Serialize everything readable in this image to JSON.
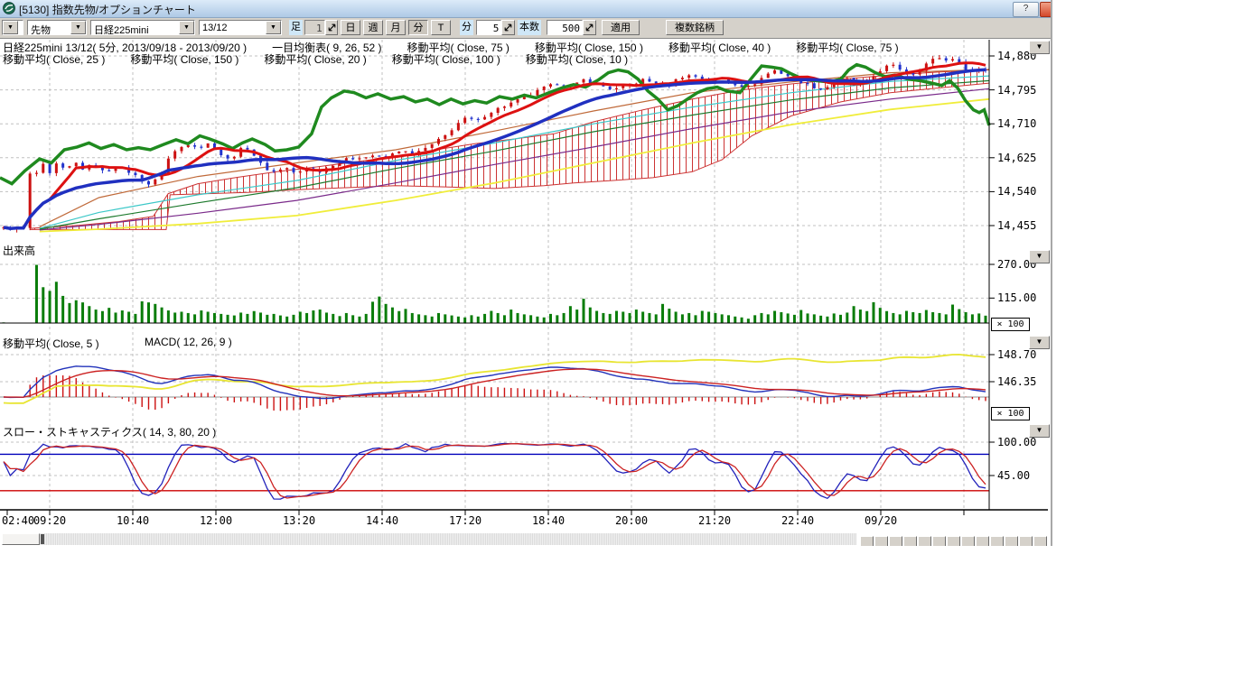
{
  "window": {
    "title": "[5130] 指数先物/オプションチャート",
    "help_label": "?"
  },
  "toolbar": {
    "category_value": "先物",
    "symbol_value": "日経225mini",
    "contract_value": "13/12",
    "bar_label": "足",
    "bar_interval_value": "1",
    "period_buttons": [
      "日",
      "週",
      "月",
      "分",
      "T"
    ],
    "pressed_period": "分",
    "minute_label": "分",
    "minute_value": "5",
    "bars_label": "本数",
    "bars_value": "500",
    "apply_label": "適用",
    "multi_symbol_label": "複数銘柄"
  },
  "legends": {
    "row1": [
      "日経225mini 13/12( 5分, 2013/09/18 - 2013/09/20 )",
      "一目均衡表( 9, 26, 52 )",
      "移動平均( Close, 75 )",
      "移動平均( Close, 150 )",
      "移動平均( Close, 40 )",
      "移動平均( Close, 75 )"
    ],
    "row2": [
      "移動平均( Close, 25 )",
      "移動平均( Close, 150 )",
      "移動平均( Close, 20 )",
      "移動平均( Close, 100 )",
      "移動平均( Close, 10 )"
    ]
  },
  "panes": {
    "volume_label": "出来高",
    "macd_ma_label": "移動平均( Close, 5 )",
    "macd_label": "MACD( 12, 26, 9 )",
    "stoch_label": "スロー・ストキャスティクス( 14, 3, 80, 20 )",
    "multiplier_badge": "× 100"
  },
  "axes": {
    "price_labels": [
      "14,880",
      "14,795",
      "14,710",
      "14,625",
      "14,540",
      "14,455"
    ],
    "price_values": [
      14880,
      14795,
      14710,
      14625,
      14540,
      14455
    ],
    "volume_labels": [
      "270.00",
      "115.00"
    ],
    "volume_values": [
      270,
      115
    ],
    "macd_axis_labels": [
      "148.70",
      "146.35"
    ],
    "macd_axis_values": [
      148.7,
      146.35
    ],
    "stoch_labels": [
      "100.00",
      "45.00"
    ],
    "stoch_values": [
      100,
      45
    ],
    "time_labels": [
      "02:40",
      "09:20",
      "10:40",
      "12:00",
      "13:20",
      "14:40",
      "17:20",
      "18:40",
      "20:00",
      "21:20",
      "22:40",
      "09/20"
    ]
  },
  "colors": {
    "grid": "#c0c0c0",
    "axis": "#000000",
    "candle_up": "#cc1111",
    "candle_down": "#2233cc",
    "ma_green_thick": "#1f8a1f",
    "ma_red_thick": "#dd1111",
    "ma_blue_thick": "#2030c0",
    "ma_yellow": "#f0ed3a",
    "ma_cyan": "#3cc8c8",
    "ma_purple": "#7a2a8a",
    "ma_darkgreen": "#1d7a2d",
    "ma_orange": "#c06a3a",
    "cloud": "#cc3333",
    "volume": "#0a7d0a",
    "macd_line": "#2233bb",
    "macd_signal": "#cc2222",
    "macd_hist": "#cc1111",
    "macd_ma5": "#e8e532",
    "stoch_k": "#2222bb",
    "stoch_d": "#cc2222",
    "stoch_upper_line": "#0000bb",
    "stoch_lower_line": "#cc0000",
    "titlebar_top": "#dcebf9",
    "titlebar_bottom": "#aec9e6",
    "toolbar_bg": "#d5d1ca"
  },
  "chart_data": {
    "type": "candlestick+indicators",
    "instrument": "日経225mini 13/12",
    "interval": "5分",
    "date_range": "2013/09/18 - 2013/09/20",
    "num_candles": 150,
    "price_axis": {
      "labels": [
        14880,
        14795,
        14710,
        14625,
        14540,
        14455
      ],
      "step": 85
    },
    "indicator_params": {
      "ichimoku": [
        9,
        26,
        52
      ],
      "ma_main_chart": [
        75,
        150,
        40,
        75,
        25,
        150,
        20,
        100,
        10
      ],
      "ma_macd_pane": 5,
      "macd": [
        12,
        26,
        9
      ],
      "slow_stochastics": [
        14,
        3,
        80,
        20
      ],
      "volume_multiplier": 100,
      "macd_pane_multiplier": 100
    },
    "stoch_levels": {
      "upper": 80,
      "lower": 20
    },
    "close_path": [
      [
        0.0,
        14448
      ],
      [
        0.026,
        14448
      ],
      [
        0.03,
        14580
      ],
      [
        0.034,
        14620
      ],
      [
        0.038,
        14575
      ],
      [
        0.044,
        14608
      ],
      [
        0.05,
        14582
      ],
      [
        0.058,
        14612
      ],
      [
        0.066,
        14590
      ],
      [
        0.075,
        14615
      ],
      [
        0.085,
        14595
      ],
      [
        0.095,
        14610
      ],
      [
        0.105,
        14588
      ],
      [
        0.118,
        14604
      ],
      [
        0.13,
        14590
      ],
      [
        0.142,
        14572
      ],
      [
        0.152,
        14556
      ],
      [
        0.162,
        14580
      ],
      [
        0.172,
        14632
      ],
      [
        0.182,
        14650
      ],
      [
        0.192,
        14662
      ],
      [
        0.202,
        14650
      ],
      [
        0.212,
        14662
      ],
      [
        0.222,
        14635
      ],
      [
        0.232,
        14618
      ],
      [
        0.242,
        14645
      ],
      [
        0.252,
        14650
      ],
      [
        0.262,
        14612
      ],
      [
        0.275,
        14588
      ],
      [
        0.288,
        14602
      ],
      [
        0.3,
        14584
      ],
      [
        0.312,
        14600
      ],
      [
        0.325,
        14590
      ],
      [
        0.338,
        14610
      ],
      [
        0.35,
        14628
      ],
      [
        0.362,
        14618
      ],
      [
        0.375,
        14635
      ],
      [
        0.39,
        14625
      ],
      [
        0.405,
        14642
      ],
      [
        0.42,
        14635
      ],
      [
        0.435,
        14655
      ],
      [
        0.45,
        14680
      ],
      [
        0.462,
        14710
      ],
      [
        0.472,
        14725
      ],
      [
        0.482,
        14715
      ],
      [
        0.492,
        14735
      ],
      [
        0.505,
        14750
      ],
      [
        0.52,
        14765
      ],
      [
        0.535,
        14780
      ],
      [
        0.55,
        14800
      ],
      [
        0.565,
        14812
      ],
      [
        0.578,
        14802
      ],
      [
        0.59,
        14820
      ],
      [
        0.605,
        14808
      ],
      [
        0.62,
        14795
      ],
      [
        0.635,
        14805
      ],
      [
        0.65,
        14820
      ],
      [
        0.662,
        14812
      ],
      [
        0.675,
        14805
      ],
      [
        0.688,
        14828
      ],
      [
        0.7,
        14832
      ],
      [
        0.715,
        14818
      ],
      [
        0.73,
        14825
      ],
      [
        0.745,
        14808
      ],
      [
        0.758,
        14802
      ],
      [
        0.77,
        14825
      ],
      [
        0.782,
        14845
      ],
      [
        0.795,
        14832
      ],
      [
        0.808,
        14818
      ],
      [
        0.82,
        14805
      ],
      [
        0.832,
        14795
      ],
      [
        0.845,
        14818
      ],
      [
        0.855,
        14825
      ],
      [
        0.865,
        14805
      ],
      [
        0.878,
        14818
      ],
      [
        0.89,
        14845
      ],
      [
        0.9,
        14858
      ],
      [
        0.912,
        14845
      ],
      [
        0.924,
        14835
      ],
      [
        0.936,
        14860
      ],
      [
        0.948,
        14878
      ],
      [
        0.956,
        14868
      ],
      [
        0.964,
        14876
      ],
      [
        0.972,
        14855
      ],
      [
        0.982,
        14840
      ],
      [
        0.992,
        14848
      ],
      [
        1.0,
        14842
      ]
    ],
    "green_ma_path": [
      [
        0.0,
        14575
      ],
      [
        0.012,
        14560
      ],
      [
        0.025,
        14592
      ],
      [
        0.04,
        14622
      ],
      [
        0.052,
        14612
      ],
      [
        0.065,
        14645
      ],
      [
        0.078,
        14652
      ],
      [
        0.09,
        14662
      ],
      [
        0.102,
        14648
      ],
      [
        0.115,
        14658
      ],
      [
        0.128,
        14645
      ],
      [
        0.14,
        14650
      ],
      [
        0.152,
        14645
      ],
      [
        0.165,
        14658
      ],
      [
        0.178,
        14670
      ],
      [
        0.19,
        14660
      ],
      [
        0.202,
        14680
      ],
      [
        0.212,
        14672
      ],
      [
        0.225,
        14660
      ],
      [
        0.235,
        14648
      ],
      [
        0.245,
        14662
      ],
      [
        0.255,
        14672
      ],
      [
        0.268,
        14658
      ],
      [
        0.278,
        14642
      ],
      [
        0.29,
        14645
      ],
      [
        0.302,
        14652
      ],
      [
        0.315,
        14685
      ],
      [
        0.325,
        14752
      ],
      [
        0.335,
        14775
      ],
      [
        0.348,
        14792
      ],
      [
        0.358,
        14788
      ],
      [
        0.37,
        14775
      ],
      [
        0.382,
        14785
      ],
      [
        0.395,
        14772
      ],
      [
        0.408,
        14778
      ],
      [
        0.42,
        14765
      ],
      [
        0.432,
        14772
      ],
      [
        0.444,
        14758
      ],
      [
        0.456,
        14772
      ],
      [
        0.468,
        14760
      ],
      [
        0.48,
        14768
      ],
      [
        0.492,
        14762
      ],
      [
        0.505,
        14778
      ],
      [
        0.518,
        14772
      ],
      [
        0.53,
        14782
      ],
      [
        0.542,
        14775
      ],
      [
        0.555,
        14788
      ],
      [
        0.568,
        14800
      ],
      [
        0.58,
        14808
      ],
      [
        0.592,
        14802
      ],
      [
        0.605,
        14820
      ],
      [
        0.615,
        14838
      ],
      [
        0.625,
        14845
      ],
      [
        0.635,
        14840
      ],
      [
        0.645,
        14822
      ],
      [
        0.655,
        14792
      ],
      [
        0.665,
        14772
      ],
      [
        0.675,
        14745
      ],
      [
        0.685,
        14755
      ],
      [
        0.695,
        14772
      ],
      [
        0.705,
        14788
      ],
      [
        0.715,
        14798
      ],
      [
        0.725,
        14802
      ],
      [
        0.735,
        14792
      ],
      [
        0.748,
        14788
      ],
      [
        0.76,
        14825
      ],
      [
        0.77,
        14855
      ],
      [
        0.78,
        14852
      ],
      [
        0.79,
        14848
      ],
      [
        0.8,
        14835
      ],
      [
        0.812,
        14822
      ],
      [
        0.825,
        14818
      ],
      [
        0.838,
        14815
      ],
      [
        0.85,
        14822
      ],
      [
        0.858,
        14845
      ],
      [
        0.866,
        14858
      ],
      [
        0.875,
        14852
      ],
      [
        0.885,
        14838
      ],
      [
        0.895,
        14828
      ],
      [
        0.905,
        14832
      ],
      [
        0.918,
        14822
      ],
      [
        0.93,
        14818
      ],
      [
        0.942,
        14812
      ],
      [
        0.952,
        14806
      ],
      [
        0.96,
        14818
      ],
      [
        0.968,
        14800
      ],
      [
        0.976,
        14768
      ],
      [
        0.984,
        14745
      ],
      [
        0.99,
        14738
      ],
      [
        0.995,
        14745
      ],
      [
        1.0,
        14706
      ]
    ],
    "cloud_top": [
      [
        0.03,
        14448
      ],
      [
        0.08,
        14456
      ],
      [
        0.12,
        14465
      ],
      [
        0.155,
        14478
      ],
      [
        0.17,
        14535
      ],
      [
        0.2,
        14560
      ],
      [
        0.24,
        14576
      ],
      [
        0.28,
        14590
      ],
      [
        0.32,
        14602
      ],
      [
        0.36,
        14615
      ],
      [
        0.4,
        14628
      ],
      [
        0.44,
        14645
      ],
      [
        0.48,
        14660
      ],
      [
        0.52,
        14672
      ],
      [
        0.56,
        14685
      ],
      [
        0.6,
        14715
      ],
      [
        0.65,
        14745
      ],
      [
        0.7,
        14772
      ],
      [
        0.75,
        14795
      ],
      [
        0.8,
        14810
      ],
      [
        0.85,
        14822
      ],
      [
        0.9,
        14832
      ],
      [
        0.95,
        14840
      ],
      [
        1.0,
        14845
      ]
    ],
    "cloud_bottom": [
      [
        0.03,
        14445
      ],
      [
        0.168,
        14445
      ],
      [
        0.172,
        14532
      ],
      [
        0.25,
        14538
      ],
      [
        0.3,
        14545
      ],
      [
        0.35,
        14550
      ],
      [
        0.4,
        14555
      ],
      [
        0.45,
        14552
      ],
      [
        0.5,
        14548
      ],
      [
        0.55,
        14555
      ],
      [
        0.58,
        14562
      ],
      [
        0.62,
        14568
      ],
      [
        0.66,
        14575
      ],
      [
        0.7,
        14590
      ],
      [
        0.73,
        14620
      ],
      [
        0.76,
        14680
      ],
      [
        0.8,
        14730
      ],
      [
        0.85,
        14765
      ],
      [
        0.9,
        14788
      ],
      [
        0.95,
        14800
      ],
      [
        1.0,
        14812
      ]
    ],
    "ma_thin": {
      "yellow": [
        [
          0.04,
          14440
        ],
        [
          0.1,
          14446
        ],
        [
          0.2,
          14460
        ],
        [
          0.3,
          14480
        ],
        [
          0.4,
          14518
        ],
        [
          0.5,
          14562
        ],
        [
          0.6,
          14612
        ],
        [
          0.7,
          14662
        ],
        [
          0.8,
          14708
        ],
        [
          0.9,
          14746
        ],
        [
          1.0,
          14772
        ]
      ],
      "purple": [
        [
          0.04,
          14444
        ],
        [
          0.1,
          14458
        ],
        [
          0.2,
          14486
        ],
        [
          0.3,
          14518
        ],
        [
          0.4,
          14562
        ],
        [
          0.5,
          14608
        ],
        [
          0.6,
          14652
        ],
        [
          0.7,
          14698
        ],
        [
          0.8,
          14740
        ],
        [
          0.9,
          14772
        ],
        [
          1.0,
          14798
        ]
      ],
      "cyan": [
        [
          0.04,
          14448
        ],
        [
          0.1,
          14488
        ],
        [
          0.2,
          14532
        ],
        [
          0.3,
          14568
        ],
        [
          0.4,
          14618
        ],
        [
          0.5,
          14662
        ],
        [
          0.6,
          14710
        ],
        [
          0.7,
          14752
        ],
        [
          0.8,
          14788
        ],
        [
          0.9,
          14816
        ],
        [
          1.0,
          14830
        ]
      ],
      "darkgreen": [
        [
          0.04,
          14446
        ],
        [
          0.1,
          14472
        ],
        [
          0.2,
          14512
        ],
        [
          0.3,
          14550
        ],
        [
          0.4,
          14598
        ],
        [
          0.5,
          14642
        ],
        [
          0.6,
          14690
        ],
        [
          0.7,
          14732
        ],
        [
          0.8,
          14770
        ],
        [
          0.9,
          14800
        ],
        [
          1.0,
          14818
        ]
      ],
      "orange": [
        [
          0.04,
          14452
        ],
        [
          0.1,
          14525
        ],
        [
          0.2,
          14578
        ],
        [
          0.3,
          14612
        ],
        [
          0.4,
          14645
        ],
        [
          0.5,
          14692
        ],
        [
          0.6,
          14742
        ],
        [
          0.7,
          14788
        ],
        [
          0.8,
          14815
        ],
        [
          0.9,
          14838
        ],
        [
          1.0,
          14846
        ]
      ]
    },
    "volume": [
      3,
      2,
      2,
      1,
      2,
      268,
      165,
      148,
      190,
      125,
      92,
      105,
      95,
      78,
      62,
      55,
      70,
      48,
      58,
      52,
      42,
      100,
      95,
      88,
      72,
      58,
      48,
      52,
      46,
      40,
      58,
      52,
      46,
      42,
      38,
      35,
      48,
      42,
      55,
      48,
      38,
      42,
      35,
      30,
      38,
      52,
      46,
      58,
      62,
      48,
      42,
      32,
      46,
      36,
      30,
      42,
      98,
      122,
      88,
      72,
      55,
      65,
      46,
      40,
      36,
      30,
      46,
      40,
      35,
      30,
      26,
      36,
      30,
      42,
      56,
      46,
      36,
      62,
      46,
      40,
      36,
      30,
      26,
      42,
      36,
      46,
      78,
      62,
      112,
      72,
      56,
      46,
      42,
      56,
      52,
      46,
      62,
      52,
      46,
      40,
      88,
      66,
      52,
      40,
      46,
      36,
      56,
      52,
      46,
      40,
      36,
      30,
      26,
      20,
      36,
      46,
      40,
      56,
      50,
      44,
      38,
      60,
      44,
      40,
      34,
      30,
      44,
      38,
      48,
      78,
      62,
      55,
      96,
      70,
      55,
      46,
      40,
      56,
      50,
      46,
      60,
      50,
      46,
      40,
      85,
      64,
      50,
      40,
      44,
      34
    ]
  }
}
